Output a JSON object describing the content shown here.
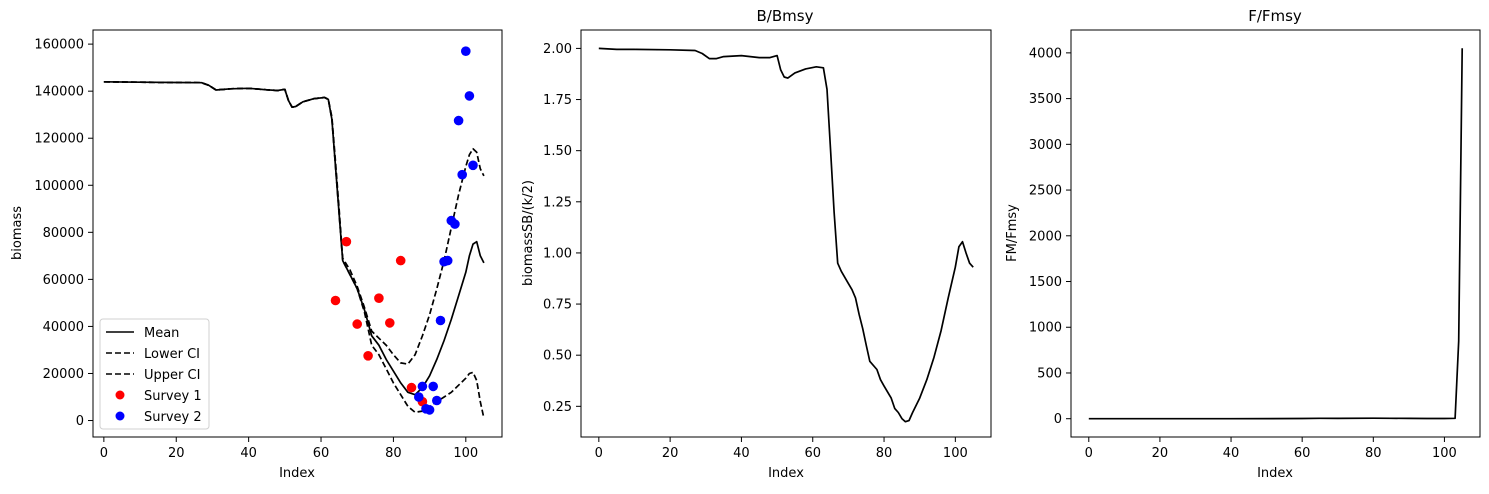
{
  "colors": {
    "line": "#000000",
    "survey1": "#ff0000",
    "survey2": "#0000ff"
  },
  "chart_data": [
    {
      "type": "line",
      "title": "",
      "xlabel": "Index",
      "ylabel": "biomass",
      "xlim": [
        -3,
        110
      ],
      "ylim": [
        -7000,
        166000
      ],
      "xticks": [
        0,
        20,
        40,
        60,
        80,
        100
      ],
      "yticks": [
        0,
        20000,
        40000,
        60000,
        80000,
        100000,
        120000,
        140000,
        160000
      ],
      "legend_position": "lower-left",
      "lines": [
        {
          "name": "Mean",
          "style": "solid",
          "points": [
            [
              0,
              144000
            ],
            [
              10,
              143800
            ],
            [
              20,
              143700
            ],
            [
              27,
              143600
            ],
            [
              29,
              142500
            ],
            [
              31,
              140500
            ],
            [
              35,
              141000
            ],
            [
              40,
              141200
            ],
            [
              45,
              140600
            ],
            [
              48,
              140300
            ],
            [
              50,
              140800
            ],
            [
              51,
              136000
            ],
            [
              52,
              133200
            ],
            [
              53,
              133500
            ],
            [
              55,
              135500
            ],
            [
              58,
              136800
            ],
            [
              61,
              137300
            ],
            [
              62,
              136500
            ],
            [
              63,
              128000
            ],
            [
              64,
              108000
            ],
            [
              65,
              88000
            ],
            [
              66,
              68000
            ],
            [
              68,
              62000
            ],
            [
              70,
              56000
            ],
            [
              72,
              47000
            ],
            [
              74,
              36000
            ],
            [
              76,
              32000
            ],
            [
              78,
              26000
            ],
            [
              80,
              21000
            ],
            [
              82,
              16000
            ],
            [
              84,
              12000
            ],
            [
              86,
              11000
            ],
            [
              88,
              14000
            ],
            [
              90,
              19000
            ],
            [
              92,
              26000
            ],
            [
              94,
              34000
            ],
            [
              96,
              43000
            ],
            [
              98,
              53000
            ],
            [
              100,
              63000
            ],
            [
              101,
              70000
            ],
            [
              102,
              75000
            ],
            [
              103,
              76000
            ],
            [
              104,
              70000
            ],
            [
              105,
              67000
            ]
          ]
        },
        {
          "name": "Lower CI",
          "style": "dashed",
          "points": [
            [
              0,
              144000
            ],
            [
              10,
              143800
            ],
            [
              20,
              143700
            ],
            [
              27,
              143600
            ],
            [
              29,
              142500
            ],
            [
              31,
              140500
            ],
            [
              35,
              141000
            ],
            [
              40,
              141200
            ],
            [
              45,
              140600
            ],
            [
              48,
              140300
            ],
            [
              50,
              140800
            ],
            [
              51,
              136000
            ],
            [
              52,
              133200
            ],
            [
              53,
              133500
            ],
            [
              55,
              135500
            ],
            [
              58,
              136800
            ],
            [
              61,
              137300
            ],
            [
              62,
              136500
            ],
            [
              63,
              128000
            ],
            [
              64,
              108000
            ],
            [
              65,
              88000
            ],
            [
              66,
              68000
            ],
            [
              68,
              62000
            ],
            [
              70,
              56000
            ],
            [
              72,
              46000
            ],
            [
              74,
              32000
            ],
            [
              76,
              28000
            ],
            [
              78,
              22000
            ],
            [
              80,
              16000
            ],
            [
              82,
              11000
            ],
            [
              84,
              6000
            ],
            [
              86,
              3500
            ],
            [
              88,
              4000
            ],
            [
              90,
              6000
            ],
            [
              92,
              8000
            ],
            [
              94,
              10000
            ],
            [
              96,
              12000
            ],
            [
              98,
              15000
            ],
            [
              100,
              18000
            ],
            [
              101,
              20000
            ],
            [
              102,
              20500
            ],
            [
              103,
              17000
            ],
            [
              104,
              8000
            ],
            [
              105,
              1000
            ]
          ]
        },
        {
          "name": "Upper CI",
          "style": "dashed",
          "points": [
            [
              0,
              144000
            ],
            [
              10,
              143800
            ],
            [
              20,
              143700
            ],
            [
              27,
              143600
            ],
            [
              29,
              142500
            ],
            [
              31,
              140500
            ],
            [
              35,
              141000
            ],
            [
              40,
              141200
            ],
            [
              45,
              140600
            ],
            [
              48,
              140300
            ],
            [
              50,
              140800
            ],
            [
              51,
              136000
            ],
            [
              52,
              133200
            ],
            [
              53,
              133500
            ],
            [
              55,
              135500
            ],
            [
              58,
              136800
            ],
            [
              61,
              137300
            ],
            [
              62,
              136500
            ],
            [
              63,
              129000
            ],
            [
              64,
              110000
            ],
            [
              65,
              90000
            ],
            [
              66,
              69000
            ],
            [
              68,
              64000
            ],
            [
              70,
              57000
            ],
            [
              72,
              48000
            ],
            [
              74,
              38000
            ],
            [
              76,
              35000
            ],
            [
              78,
              32000
            ],
            [
              80,
              28000
            ],
            [
              82,
              24500
            ],
            [
              84,
              24000
            ],
            [
              86,
              28000
            ],
            [
              88,
              36000
            ],
            [
              90,
              45000
            ],
            [
              92,
              56000
            ],
            [
              94,
              68000
            ],
            [
              96,
              82000
            ],
            [
              98,
              96000
            ],
            [
              100,
              108000
            ],
            [
              101,
              113000
            ],
            [
              102,
              115500
            ],
            [
              103,
              114000
            ],
            [
              104,
              107000
            ],
            [
              105,
              104000
            ]
          ]
        }
      ],
      "scatter": [
        {
          "name": "Survey 1",
          "color": "#ff0000",
          "points": [
            [
              64,
              51000
            ],
            [
              67,
              76000
            ],
            [
              70,
              41000
            ],
            [
              73,
              27500
            ],
            [
              76,
              52000
            ],
            [
              79,
              41500
            ],
            [
              82,
              68000
            ],
            [
              85,
              14000
            ],
            [
              88,
              8000
            ]
          ]
        },
        {
          "name": "Survey 2",
          "color": "#0000ff",
          "points": [
            [
              87,
              10000
            ],
            [
              88,
              14500
            ],
            [
              89,
              5000
            ],
            [
              90,
              4500
            ],
            [
              91,
              14500
            ],
            [
              92,
              8500
            ],
            [
              93,
              42500
            ],
            [
              94,
              67500
            ],
            [
              95,
              68000
            ],
            [
              96,
              85000
            ],
            [
              97,
              83500
            ],
            [
              98,
              127500
            ],
            [
              99,
              104500
            ],
            [
              100,
              157000
            ],
            [
              101,
              138000
            ],
            [
              102,
              108500
            ]
          ]
        }
      ]
    },
    {
      "type": "line",
      "title": "B/Bmsy",
      "xlabel": "Index",
      "ylabel": "biomassSB/(k/2)",
      "xlim": [
        -5,
        110
      ],
      "ylim": [
        0.1,
        2.09
      ],
      "xticks": [
        0,
        20,
        40,
        60,
        80,
        100
      ],
      "yticks": [
        0.25,
        0.5,
        0.75,
        1.0,
        1.25,
        1.5,
        1.75,
        2.0
      ],
      "ytick_labels": [
        "0.25",
        "0.50",
        "0.75",
        "1.00",
        "1.25",
        "1.50",
        "1.75",
        "2.00"
      ],
      "lines": [
        {
          "name": "",
          "style": "solid",
          "points": [
            [
              0,
              2.0
            ],
            [
              5,
              1.995
            ],
            [
              10,
              1.995
            ],
            [
              20,
              1.993
            ],
            [
              27,
              1.99
            ],
            [
              29,
              1.975
            ],
            [
              31,
              1.95
            ],
            [
              33,
              1.95
            ],
            [
              35,
              1.96
            ],
            [
              40,
              1.965
            ],
            [
              45,
              1.955
            ],
            [
              48,
              1.955
            ],
            [
              50,
              1.965
            ],
            [
              51,
              1.895
            ],
            [
              52,
              1.86
            ],
            [
              53,
              1.855
            ],
            [
              55,
              1.88
            ],
            [
              58,
              1.9
            ],
            [
              61,
              1.91
            ],
            [
              63,
              1.905
            ],
            [
              64,
              1.8
            ],
            [
              65,
              1.5
            ],
            [
              66,
              1.2
            ],
            [
              67,
              0.95
            ],
            [
              68,
              0.91
            ],
            [
              70,
              0.85
            ],
            [
              71,
              0.82
            ],
            [
              72,
              0.78
            ],
            [
              73,
              0.7
            ],
            [
              74,
              0.63
            ],
            [
              75,
              0.55
            ],
            [
              76,
              0.47
            ],
            [
              78,
              0.43
            ],
            [
              79,
              0.38
            ],
            [
              80,
              0.35
            ],
            [
              82,
              0.29
            ],
            [
              83,
              0.24
            ],
            [
              84,
              0.22
            ],
            [
              85,
              0.19
            ],
            [
              86,
              0.175
            ],
            [
              87,
              0.18
            ],
            [
              88,
              0.22
            ],
            [
              90,
              0.29
            ],
            [
              92,
              0.38
            ],
            [
              94,
              0.49
            ],
            [
              96,
              0.62
            ],
            [
              98,
              0.78
            ],
            [
              100,
              0.93
            ],
            [
              101,
              1.03
            ],
            [
              102,
              1.055
            ],
            [
              103,
              1.0
            ],
            [
              104,
              0.95
            ],
            [
              105,
              0.93
            ]
          ]
        }
      ]
    },
    {
      "type": "line",
      "title": "F/Fmsy",
      "xlabel": "Index",
      "ylabel": "FM/Fmsy",
      "xlim": [
        -5,
        110
      ],
      "ylim": [
        -200,
        4250
      ],
      "xticks": [
        0,
        20,
        40,
        60,
        80,
        100
      ],
      "yticks": [
        0,
        500,
        1000,
        1500,
        2000,
        2500,
        3000,
        3500,
        4000
      ],
      "lines": [
        {
          "name": "",
          "style": "solid",
          "points": [
            [
              0,
              0
            ],
            [
              20,
              0
            ],
            [
              40,
              0
            ],
            [
              60,
              2
            ],
            [
              65,
              5
            ],
            [
              70,
              3
            ],
            [
              80,
              6
            ],
            [
              85,
              5
            ],
            [
              90,
              3
            ],
            [
              95,
              2
            ],
            [
              100,
              2
            ],
            [
              103,
              5
            ],
            [
              104,
              850
            ],
            [
              105,
              4050
            ]
          ]
        }
      ]
    }
  ]
}
